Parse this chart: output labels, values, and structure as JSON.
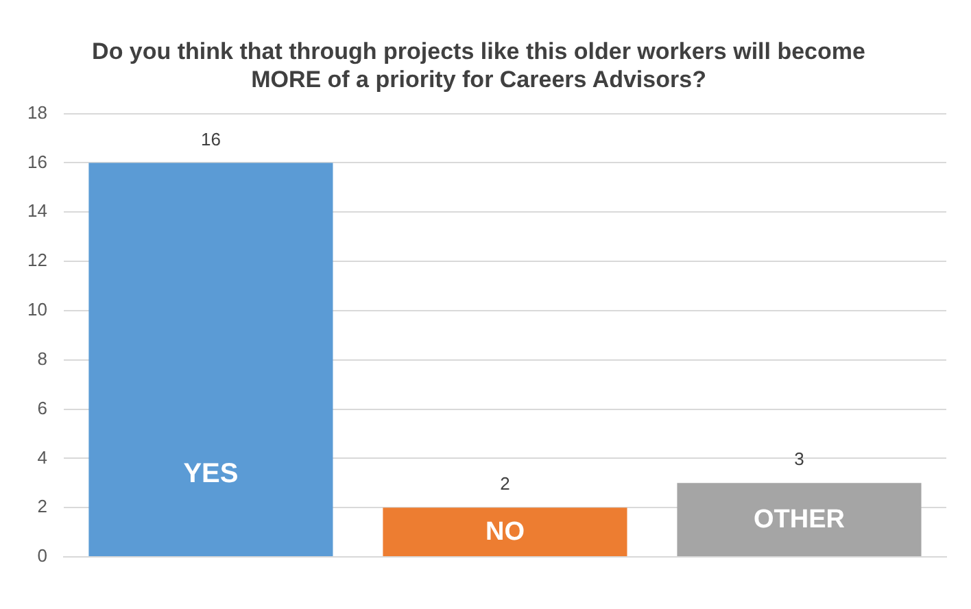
{
  "chart_data": {
    "type": "bar",
    "title": "Do you think that through projects like this older workers will become MORE of a priority for Careers Advisors?",
    "categories": [
      "YES",
      "NO",
      "OTHER"
    ],
    "values": [
      16,
      2,
      3
    ],
    "colors": [
      "#5b9bd5",
      "#ed7d31",
      "#a5a5a5"
    ],
    "ylim": [
      0,
      18
    ],
    "yticks": [
      0,
      2,
      4,
      6,
      8,
      10,
      12,
      14,
      16,
      18
    ],
    "grid": "y",
    "legend": false,
    "data_labels": true
  }
}
